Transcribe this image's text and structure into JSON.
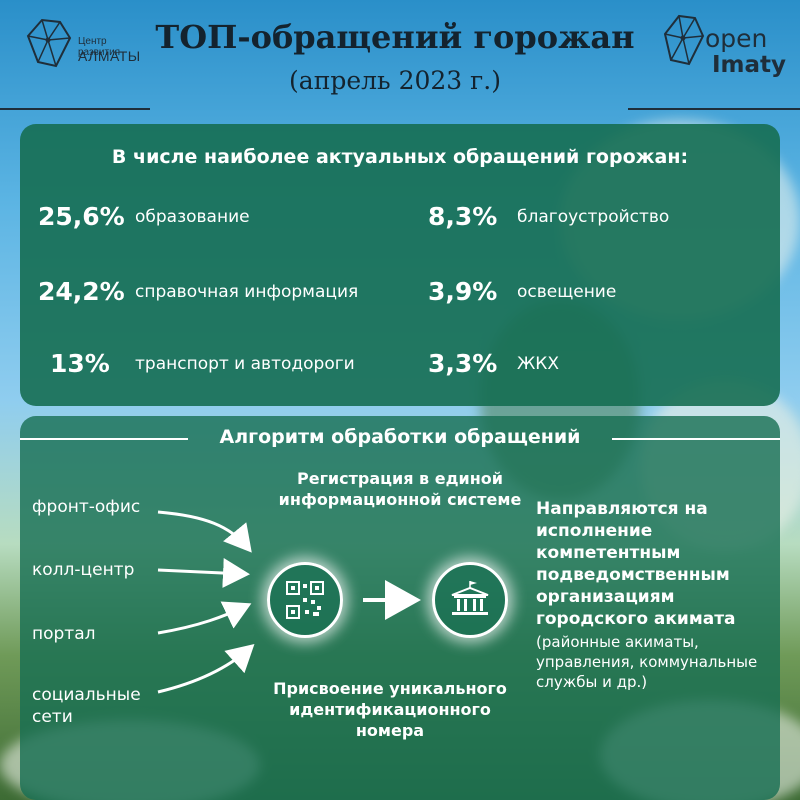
{
  "header": {
    "title": "ТОП-обращений горожан",
    "subtitle": "(апрель 2023 г.)",
    "logo_left": {
      "line1": "Центр развития",
      "line2": "АЛМАТЫ",
      "icon": "diamond-logo-icon"
    },
    "logo_right": {
      "line1": "open",
      "line2": "Imaty",
      "icon": "diamond-logo-icon"
    }
  },
  "top_topics": {
    "heading": "В числе наиболее актуальных обращений горожан:",
    "items": [
      {
        "percent": "25,6%",
        "label": "образование"
      },
      {
        "percent": "24,2%",
        "label": "справочная информация"
      },
      {
        "percent": "13%",
        "label": "транспорт и автодороги"
      },
      {
        "percent": "8,3%",
        "label": "благоустройство"
      },
      {
        "percent": "3,9%",
        "label": "освещение"
      },
      {
        "percent": "3,3%",
        "label": "ЖКХ"
      }
    ]
  },
  "algorithm": {
    "heading": "Алгоритм обработки обращений",
    "sources": [
      "фронт-офис",
      "колл-центр",
      "портал",
      "социальные сети"
    ],
    "step_registration": "Регистрация в единой информационной системе",
    "step_id": "Присвоение уникального идентификационного номера",
    "result_main": "Направляются на исполнение компетентным подведомственным организациям городского акимата",
    "result_note": "(районные акиматы, управления, коммунальные службы и др.)",
    "icons": [
      "qr-code-icon",
      "government-building-icon",
      "arrow-right-icon"
    ]
  },
  "colors": {
    "panel": "#166e52",
    "text_dark": "#14232e",
    "text_light": "#ffffff",
    "sky": "#5bb4e3"
  }
}
